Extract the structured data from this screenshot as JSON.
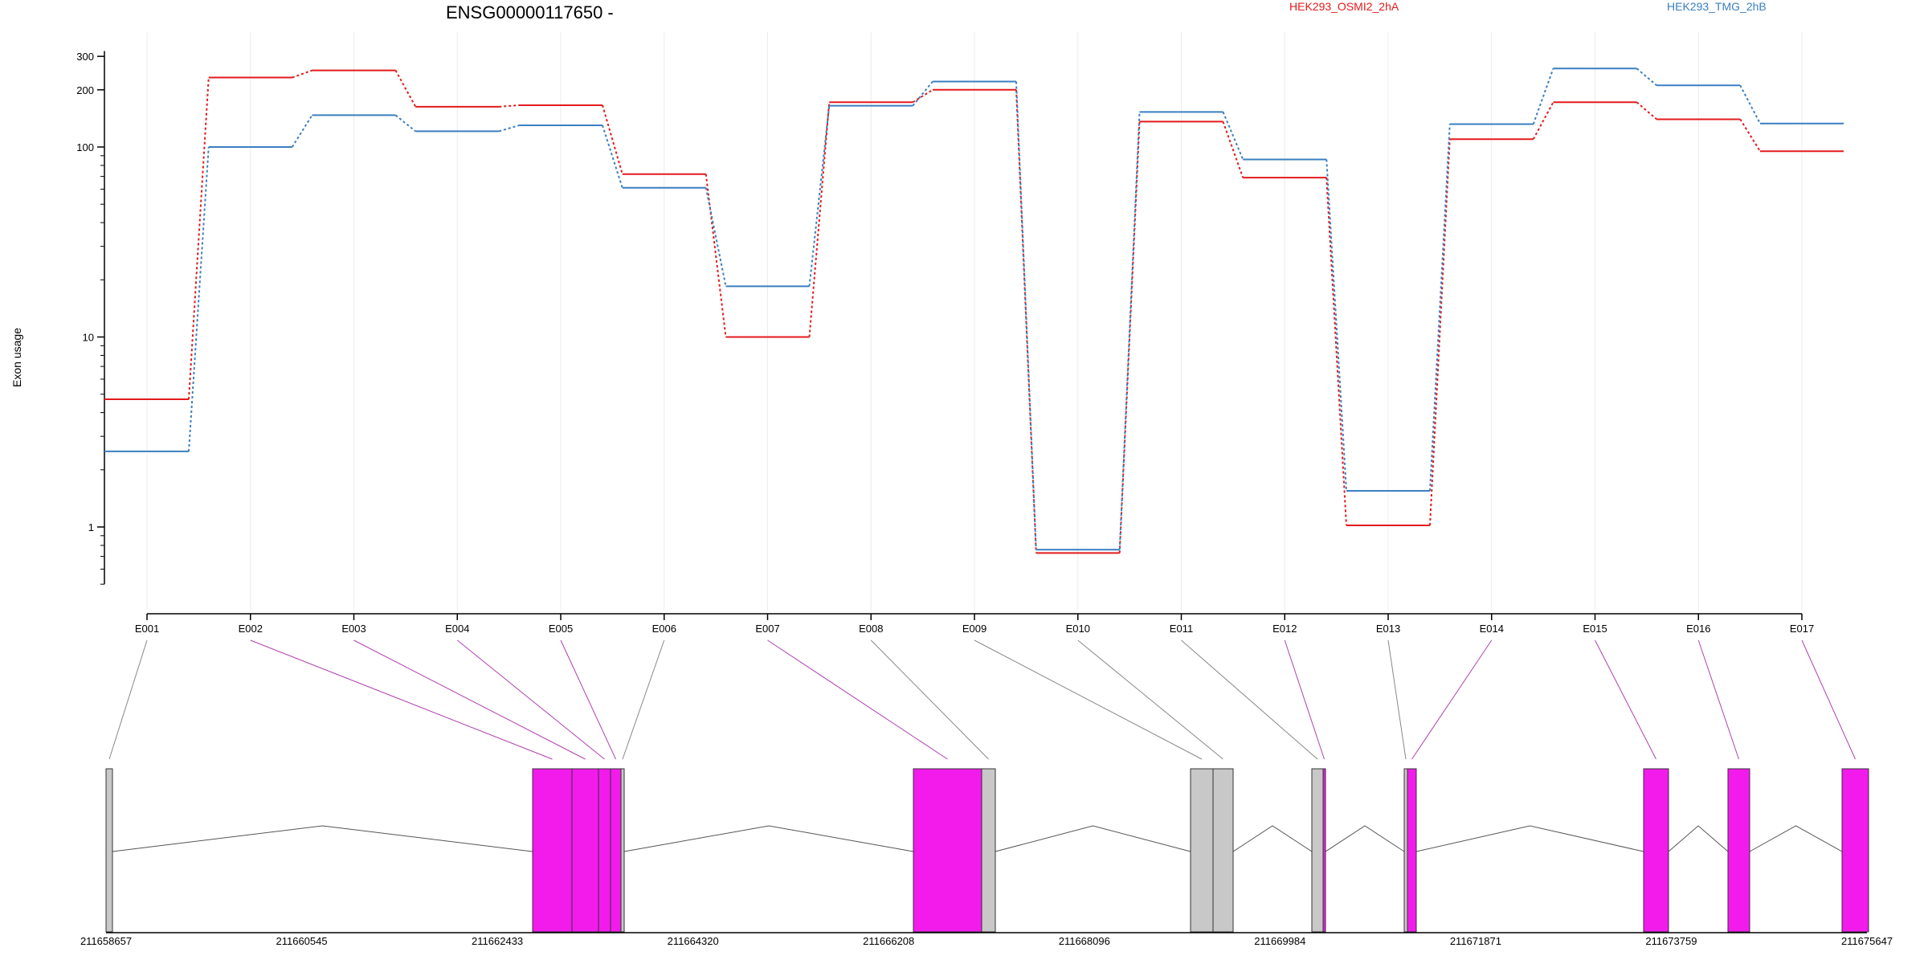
{
  "chart_data": {
    "type": "line",
    "title": "ENSG00000117650 -",
    "ylabel": "Exon usage",
    "yscale": "log",
    "ylim": [
      0.5,
      320
    ],
    "yticks": [
      {
        "value": 1,
        "label": "1"
      },
      {
        "value": 10,
        "label": "10"
      },
      {
        "value": 100,
        "label": "100"
      },
      {
        "value": 200,
        "label": "200"
      },
      {
        "value": 300,
        "label": "300"
      }
    ],
    "categories": [
      "E001",
      "E002",
      "E003",
      "E004",
      "E005",
      "E006",
      "E007",
      "E008",
      "E009",
      "E010",
      "E011",
      "E012",
      "E013",
      "E014",
      "E015",
      "E016",
      "E017"
    ],
    "series": [
      {
        "name": "HEK293_OSMI2_2hA",
        "color": "#e31a1c",
        "values": [
          4.7,
          232,
          253,
          163,
          166,
          72,
          10,
          172,
          200,
          0.73,
          136,
          69,
          1.02,
          110,
          172,
          140,
          95
        ]
      },
      {
        "name": "HEK293_TMG_2hB",
        "color": "#3a7fc1",
        "values": [
          2.5,
          100,
          147,
          121,
          130,
          61,
          18.5,
          165,
          221,
          0.76,
          153,
          86,
          1.55,
          132,
          259,
          211,
          133
        ]
      }
    ],
    "grid": "vertical",
    "legend_position": "top-right",
    "gene_model": {
      "coordinate_labels": [
        "211658657",
        "211660545",
        "211662433",
        "211664320",
        "211666208",
        "211668096",
        "211669984",
        "211671871",
        "211673759",
        "211675647"
      ],
      "exon_colors": {
        "expressed": "#f21bec",
        "other": "#c8c8c8"
      },
      "exons": [
        {
          "id": "E001",
          "color": "#c8c8c8"
        },
        {
          "id": "E002",
          "color": "#f21bec"
        },
        {
          "id": "E003",
          "color": "#f21bec"
        },
        {
          "id": "E004",
          "color": "#f21bec"
        },
        {
          "id": "E005",
          "color": "#f21bec"
        },
        {
          "id": "E006",
          "color": "#c8c8c8"
        },
        {
          "id": "E007",
          "color": "#f21bec"
        },
        {
          "id": "E008",
          "color": "#c8c8c8"
        },
        {
          "id": "E009",
          "color": "#c8c8c8"
        },
        {
          "id": "E010",
          "color": "#c8c8c8"
        },
        {
          "id": "E011",
          "color": "#c8c8c8"
        },
        {
          "id": "E012",
          "color": "#f21bec"
        },
        {
          "id": "E013",
          "color": "#c8c8c8"
        },
        {
          "id": "E014",
          "color": "#f21bec"
        },
        {
          "id": "E015",
          "color": "#f21bec"
        },
        {
          "id": "E016",
          "color": "#f21bec"
        },
        {
          "id": "E017",
          "color": "#f21bec"
        }
      ]
    }
  }
}
